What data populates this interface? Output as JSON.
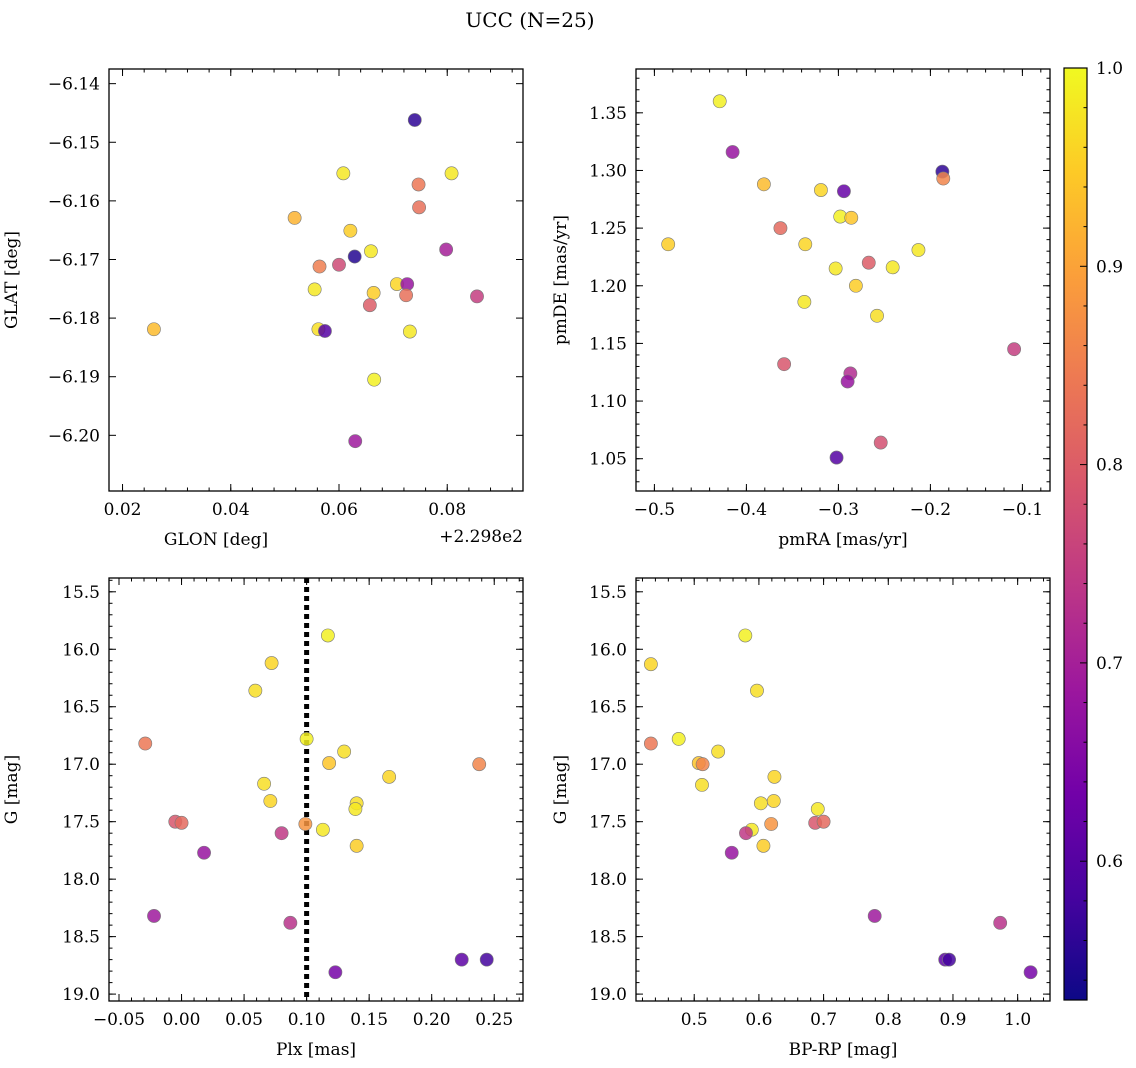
{
  "title": "UCC (N=25)",
  "colorbar": {
    "min": 0.53,
    "max": 1.0,
    "ticks": [
      "0.6",
      "0.7",
      "0.8",
      "0.9",
      "1.0"
    ],
    "tick_values": [
      0.6,
      0.7,
      0.8,
      0.9,
      1.0
    ],
    "colormap": "plasma",
    "stops": [
      "#0d0887",
      "#46039f",
      "#7201a8",
      "#9c179e",
      "#bd3786",
      "#d8576b",
      "#ed7953",
      "#fb9f3a",
      "#fdca26",
      "#f0f921"
    ]
  },
  "chart_data": [
    {
      "type": "scatter",
      "id": "glon-glat",
      "xlabel": "GLON [deg]",
      "ylabel": "GLAT [deg]",
      "x_offset_label": "+2.298e2",
      "xlim": [
        0.0175,
        0.094
      ],
      "ylim": [
        -6.2095,
        -6.1375
      ],
      "y_inverted": false,
      "xticks": [
        0.02,
        0.04,
        0.06,
        0.08
      ],
      "xtick_labels": [
        "0.02",
        "0.04",
        "0.06",
        "0.08"
      ],
      "yticks": [
        -6.14,
        -6.15,
        -6.16,
        -6.17,
        -6.18,
        -6.19,
        -6.2
      ],
      "ytick_labels": [
        "−6.14",
        "−6.15",
        "−6.16",
        "−6.17",
        "−6.18",
        "−6.19",
        "−6.20"
      ],
      "points": [
        {
          "x": 0.074,
          "y": -6.1462,
          "c": 0.56
        },
        {
          "x": 0.0608,
          "y": -6.1553,
          "c": 0.98
        },
        {
          "x": 0.0808,
          "y": -6.1553,
          "c": 0.98
        },
        {
          "x": 0.0747,
          "y": -6.1572,
          "c": 0.84
        },
        {
          "x": 0.0748,
          "y": -6.1611,
          "c": 0.83
        },
        {
          "x": 0.0518,
          "y": -6.1629,
          "c": 0.92
        },
        {
          "x": 0.0621,
          "y": -6.1651,
          "c": 0.95
        },
        {
          "x": 0.0659,
          "y": -6.1686,
          "c": 0.98
        },
        {
          "x": 0.0798,
          "y": -6.1683,
          "c": 0.7
        },
        {
          "x": 0.0629,
          "y": -6.1695,
          "c": 0.55
        },
        {
          "x": 0.0564,
          "y": -6.1712,
          "c": 0.85
        },
        {
          "x": 0.06,
          "y": -6.1709,
          "c": 0.77
        },
        {
          "x": 0.0707,
          "y": -6.1742,
          "c": 0.96
        },
        {
          "x": 0.0726,
          "y": -6.1742,
          "c": 0.68
        },
        {
          "x": 0.0555,
          "y": -6.1751,
          "c": 0.98
        },
        {
          "x": 0.0664,
          "y": -6.1757,
          "c": 0.95
        },
        {
          "x": 0.0724,
          "y": -6.1761,
          "c": 0.83
        },
        {
          "x": 0.0855,
          "y": -6.1763,
          "c": 0.75
        },
        {
          "x": 0.0258,
          "y": -6.1819,
          "c": 0.93
        },
        {
          "x": 0.0562,
          "y": -6.1819,
          "c": 0.97
        },
        {
          "x": 0.0574,
          "y": -6.1822,
          "c": 0.6
        },
        {
          "x": 0.0657,
          "y": -6.1778,
          "c": 0.8
        },
        {
          "x": 0.0731,
          "y": -6.1823,
          "c": 0.98
        },
        {
          "x": 0.0665,
          "y": -6.1905,
          "c": 0.99
        },
        {
          "x": 0.063,
          "y": -6.201,
          "c": 0.69
        }
      ]
    },
    {
      "type": "scatter",
      "id": "pmra-pmde",
      "xlabel": "pmRA [mas/yr]",
      "ylabel": "pmDE [mas/yr]",
      "xlim": [
        -0.52,
        -0.07
      ],
      "ylim": [
        1.022,
        1.388
      ],
      "y_inverted": false,
      "xticks": [
        -0.5,
        -0.4,
        -0.3,
        -0.2,
        -0.1
      ],
      "xtick_labels": [
        "−0.5",
        "−0.4",
        "−0.3",
        "−0.2",
        "−0.1"
      ],
      "yticks": [
        1.05,
        1.1,
        1.15,
        1.2,
        1.25,
        1.3,
        1.35
      ],
      "ytick_labels": [
        "1.05",
        "1.10",
        "1.15",
        "1.20",
        "1.25",
        "1.30",
        "1.35"
      ],
      "points": [
        {
          "x": -0.429,
          "y": 1.36,
          "c": 0.99
        },
        {
          "x": -0.415,
          "y": 1.316,
          "c": 0.68
        },
        {
          "x": -0.187,
          "y": 1.299,
          "c": 0.56
        },
        {
          "x": -0.186,
          "y": 1.293,
          "c": 0.86
        },
        {
          "x": -0.381,
          "y": 1.288,
          "c": 0.93
        },
        {
          "x": -0.319,
          "y": 1.283,
          "c": 0.96
        },
        {
          "x": -0.294,
          "y": 1.282,
          "c": 0.62
        },
        {
          "x": -0.298,
          "y": 1.26,
          "c": 0.99
        },
        {
          "x": -0.286,
          "y": 1.259,
          "c": 0.94
        },
        {
          "x": -0.363,
          "y": 1.25,
          "c": 0.82
        },
        {
          "x": -0.485,
          "y": 1.236,
          "c": 0.95
        },
        {
          "x": -0.336,
          "y": 1.236,
          "c": 0.96
        },
        {
          "x": -0.213,
          "y": 1.231,
          "c": 0.98
        },
        {
          "x": -0.267,
          "y": 1.22,
          "c": 0.8
        },
        {
          "x": -0.241,
          "y": 1.216,
          "c": 0.98
        },
        {
          "x": -0.303,
          "y": 1.215,
          "c": 0.98
        },
        {
          "x": -0.281,
          "y": 1.2,
          "c": 0.95
        },
        {
          "x": -0.337,
          "y": 1.186,
          "c": 0.98
        },
        {
          "x": -0.258,
          "y": 1.174,
          "c": 0.97
        },
        {
          "x": -0.109,
          "y": 1.145,
          "c": 0.75
        },
        {
          "x": -0.359,
          "y": 1.132,
          "c": 0.79
        },
        {
          "x": -0.287,
          "y": 1.124,
          "c": 0.72
        },
        {
          "x": -0.29,
          "y": 1.117,
          "c": 0.68
        },
        {
          "x": -0.254,
          "y": 1.064,
          "c": 0.78
        },
        {
          "x": -0.302,
          "y": 1.051,
          "c": 0.6
        }
      ]
    },
    {
      "type": "scatter",
      "id": "plx-g",
      "xlabel": "Plx [mas]",
      "ylabel": "G [mag]",
      "xlim": [
        -0.058,
        0.273
      ],
      "ylim": [
        15.38,
        19.06
      ],
      "y_inverted": true,
      "xticks": [
        -0.05,
        0.0,
        0.05,
        0.1,
        0.15,
        0.2,
        0.25
      ],
      "xtick_labels": [
        "−0.05",
        "0.00",
        "0.05",
        "0.10",
        "0.15",
        "0.20",
        "0.25"
      ],
      "yticks": [
        15.5,
        16.0,
        16.5,
        17.0,
        17.5,
        18.0,
        18.5,
        19.0
      ],
      "ytick_labels": [
        "15.5",
        "16.0",
        "16.5",
        "17.0",
        "17.5",
        "18.0",
        "18.5",
        "19.0"
      ],
      "vline": {
        "x": 0.1,
        "style": "dotted"
      },
      "points": [
        {
          "x": 0.117,
          "y": 15.88,
          "c": 0.99
        },
        {
          "x": 0.072,
          "y": 16.12,
          "c": 0.96
        },
        {
          "x": 0.059,
          "y": 16.36,
          "c": 0.97
        },
        {
          "x": 0.1,
          "y": 16.78,
          "c": 0.99
        },
        {
          "x": -0.029,
          "y": 16.82,
          "c": 0.84
        },
        {
          "x": 0.13,
          "y": 16.89,
          "c": 0.97
        },
        {
          "x": 0.118,
          "y": 16.99,
          "c": 0.94
        },
        {
          "x": 0.238,
          "y": 17.0,
          "c": 0.86
        },
        {
          "x": 0.166,
          "y": 17.11,
          "c": 0.96
        },
        {
          "x": 0.066,
          "y": 17.17,
          "c": 0.97
        },
        {
          "x": 0.071,
          "y": 17.32,
          "c": 0.96
        },
        {
          "x": 0.14,
          "y": 17.34,
          "c": 0.97
        },
        {
          "x": 0.139,
          "y": 17.39,
          "c": 0.98
        },
        {
          "x": -0.005,
          "y": 17.5,
          "c": 0.79
        },
        {
          "x": 0.0,
          "y": 17.51,
          "c": 0.82
        },
        {
          "x": 0.099,
          "y": 17.52,
          "c": 0.88
        },
        {
          "x": 0.113,
          "y": 17.57,
          "c": 0.98
        },
        {
          "x": 0.08,
          "y": 17.6,
          "c": 0.74
        },
        {
          "x": 0.14,
          "y": 17.71,
          "c": 0.95
        },
        {
          "x": 0.018,
          "y": 17.77,
          "c": 0.68
        },
        {
          "x": -0.022,
          "y": 18.32,
          "c": 0.69
        },
        {
          "x": 0.087,
          "y": 18.38,
          "c": 0.73
        },
        {
          "x": 0.224,
          "y": 18.7,
          "c": 0.61
        },
        {
          "x": 0.244,
          "y": 18.7,
          "c": 0.58
        },
        {
          "x": 0.123,
          "y": 18.81,
          "c": 0.64
        }
      ]
    },
    {
      "type": "scatter",
      "id": "bprp-g",
      "xlabel": "BP-RP [mag]",
      "ylabel": "G [mag]",
      "xlim": [
        0.41,
        1.05
      ],
      "ylim": [
        15.38,
        19.06
      ],
      "y_inverted": true,
      "xticks": [
        0.5,
        0.6,
        0.7,
        0.8,
        0.9,
        1.0
      ],
      "xtick_labels": [
        "0.5",
        "0.6",
        "0.7",
        "0.8",
        "0.9",
        "1.0"
      ],
      "yticks": [
        15.5,
        16.0,
        16.5,
        17.0,
        17.5,
        18.0,
        18.5,
        19.0
      ],
      "ytick_labels": [
        "15.5",
        "16.0",
        "16.5",
        "17.0",
        "17.5",
        "18.0",
        "18.5",
        "19.0"
      ],
      "points": [
        {
          "x": 0.579,
          "y": 15.88,
          "c": 0.99
        },
        {
          "x": 0.433,
          "y": 16.13,
          "c": 0.96
        },
        {
          "x": 0.597,
          "y": 16.36,
          "c": 0.97
        },
        {
          "x": 0.476,
          "y": 16.78,
          "c": 0.99
        },
        {
          "x": 0.433,
          "y": 16.82,
          "c": 0.84
        },
        {
          "x": 0.537,
          "y": 16.89,
          "c": 0.97
        },
        {
          "x": 0.507,
          "y": 16.99,
          "c": 0.94
        },
        {
          "x": 0.513,
          "y": 17.0,
          "c": 0.86
        },
        {
          "x": 0.624,
          "y": 17.11,
          "c": 0.96
        },
        {
          "x": 0.512,
          "y": 17.18,
          "c": 0.97
        },
        {
          "x": 0.603,
          "y": 17.34,
          "c": 0.97
        },
        {
          "x": 0.623,
          "y": 17.32,
          "c": 0.96
        },
        {
          "x": 0.691,
          "y": 17.39,
          "c": 0.98
        },
        {
          "x": 0.687,
          "y": 17.51,
          "c": 0.79
        },
        {
          "x": 0.7,
          "y": 17.5,
          "c": 0.82
        },
        {
          "x": 0.619,
          "y": 17.52,
          "c": 0.88
        },
        {
          "x": 0.589,
          "y": 17.57,
          "c": 0.98
        },
        {
          "x": 0.58,
          "y": 17.6,
          "c": 0.74
        },
        {
          "x": 0.607,
          "y": 17.71,
          "c": 0.95
        },
        {
          "x": 0.558,
          "y": 17.77,
          "c": 0.68
        },
        {
          "x": 0.779,
          "y": 18.32,
          "c": 0.69
        },
        {
          "x": 0.973,
          "y": 18.38,
          "c": 0.73
        },
        {
          "x": 0.888,
          "y": 18.7,
          "c": 0.61
        },
        {
          "x": 0.894,
          "y": 18.7,
          "c": 0.58
        },
        {
          "x": 1.02,
          "y": 18.81,
          "c": 0.64
        }
      ]
    }
  ]
}
